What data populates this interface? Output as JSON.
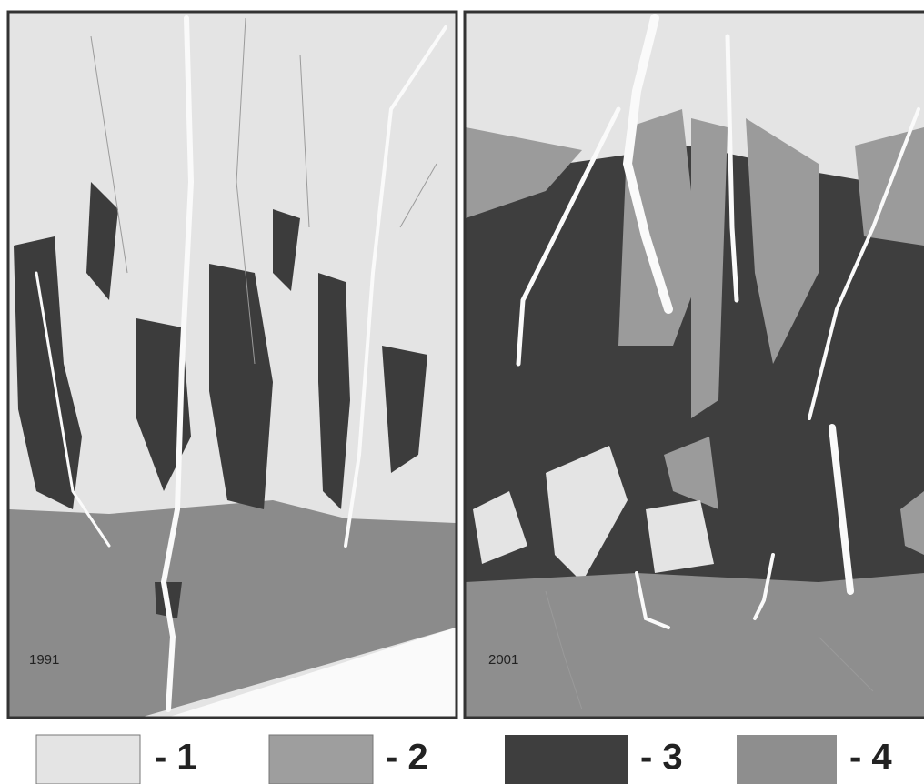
{
  "panels": [
    {
      "label": "1991"
    },
    {
      "label": "2001"
    }
  ],
  "legend": [
    {
      "label": "- 1"
    },
    {
      "label": "- 2"
    },
    {
      "label": "- 3"
    },
    {
      "label": "- 4"
    }
  ]
}
